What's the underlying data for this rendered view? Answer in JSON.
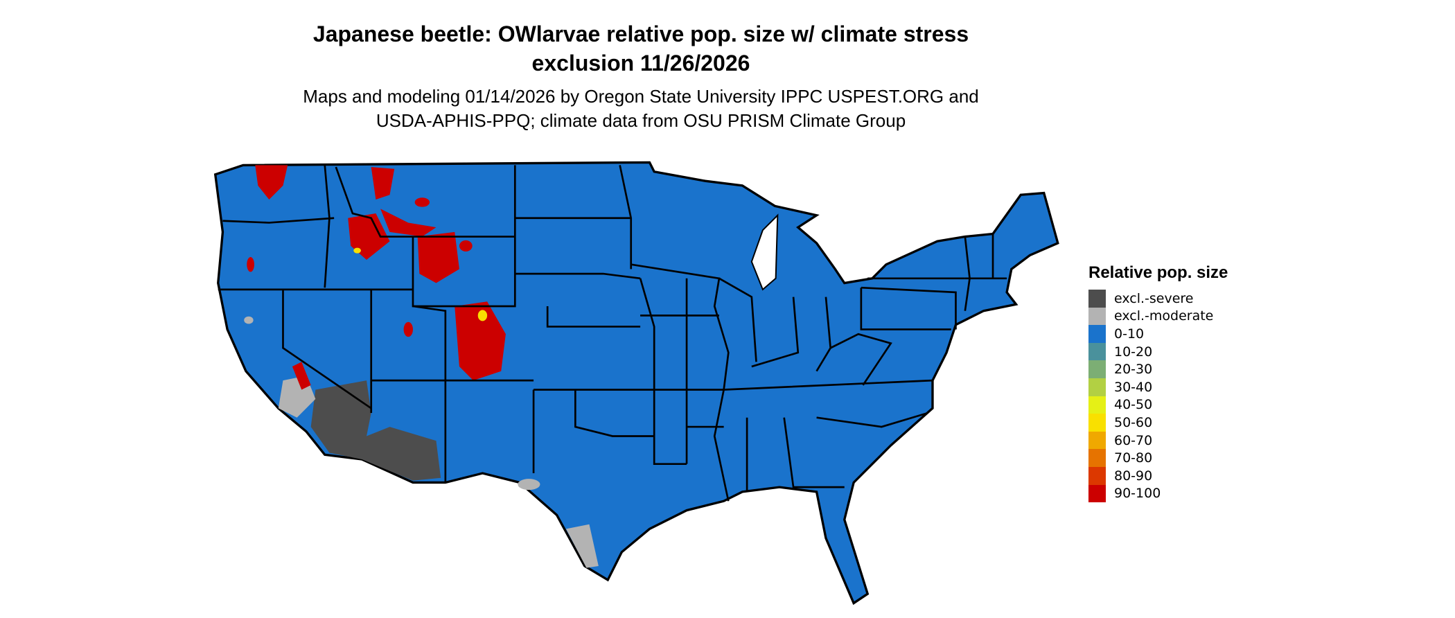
{
  "title_line1": "Japanese beetle: OWlarvae relative pop. size w/ climate stress",
  "title_line2": "exclusion 11/26/2026",
  "subtitle_line1": "Maps and modeling 01/14/2026 by Oregon State University IPPC USPEST.ORG and",
  "subtitle_line2": "USDA-APHIS-PPQ; climate data from OSU PRISM Climate Group",
  "legend": {
    "title": "Relative pop. size",
    "items": [
      {
        "label": "excl.-severe",
        "color": "#4d4d4d"
      },
      {
        "label": "excl.-moderate",
        "color": "#b3b3b3"
      },
      {
        "label": "0-10",
        "color": "#1a73cc"
      },
      {
        "label": "10-20",
        "color": "#4a919c"
      },
      {
        "label": "20-30",
        "color": "#7cae74"
      },
      {
        "label": "30-40",
        "color": "#b2d043"
      },
      {
        "label": "40-50",
        "color": "#e5f016"
      },
      {
        "label": "50-60",
        "color": "#f9e000"
      },
      {
        "label": "60-70",
        "color": "#f0a800"
      },
      {
        "label": "70-80",
        "color": "#e67300"
      },
      {
        "label": "80-90",
        "color": "#dc3800"
      },
      {
        "label": "90-100",
        "color": "#cc0000"
      }
    ]
  },
  "map": {
    "region": "Contiguous United States",
    "base_color": "#1a73cc",
    "border_color": "#000000"
  }
}
